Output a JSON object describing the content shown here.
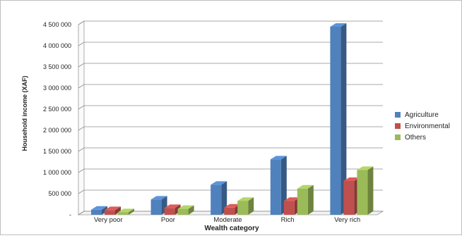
{
  "chart_data": {
    "type": "bar",
    "categories": [
      "Very poor",
      "Poor",
      "Moderate",
      "Rich",
      "Very rich"
    ],
    "series": [
      {
        "name": "Agriculture",
        "color": "#4f81bd",
        "values": [
          120000,
          360000,
          710000,
          1310000,
          4450000
        ]
      },
      {
        "name": "Environmental",
        "color": "#c0504d",
        "values": [
          110000,
          160000,
          170000,
          330000,
          800000
        ]
      },
      {
        "name": "Others",
        "color": "#9bbb59",
        "values": [
          60000,
          140000,
          330000,
          620000,
          1060000
        ]
      }
    ],
    "title": "",
    "xlabel": "Wealth category",
    "ylabel": "Household income (XAF)",
    "ylim": [
      0,
      4500000
    ],
    "yticks": [
      "-",
      "500 000",
      "1 000 000",
      "1 500 000",
      "2 000 000",
      "2 500 000",
      "3 000 000",
      "3 500 000",
      "4 000 000",
      "4 500 000"
    ],
    "grid": true,
    "legend_position": "right"
  }
}
